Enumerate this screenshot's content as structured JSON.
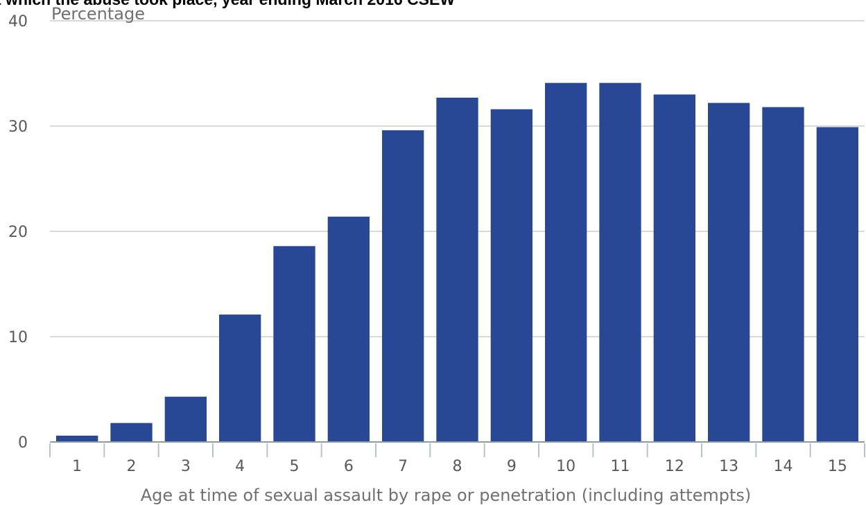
{
  "chart_data": {
    "type": "bar",
    "title": "t which the abuse took place, year ending March 2016 CSEW",
    "ylabel": "Percentage",
    "xlabel": "Age at time of sexual assault by rape or penetration (including attempts)",
    "categories": [
      "1",
      "2",
      "3",
      "4",
      "5",
      "6",
      "7",
      "8",
      "9",
      "10",
      "11",
      "12",
      "13",
      "14",
      "15"
    ],
    "values": [
      0.6,
      1.8,
      4.3,
      12.1,
      18.6,
      21.4,
      29.6,
      32.7,
      31.6,
      34.1,
      34.1,
      33.0,
      32.2,
      31.8,
      29.9
    ],
    "ylim": [
      0,
      40
    ],
    "yticks": [
      0,
      10,
      20,
      30,
      40
    ],
    "grid": true,
    "colors": {
      "bar": "#284795",
      "grid": "#d9d9d9",
      "axis": "#8c99ab"
    }
  }
}
